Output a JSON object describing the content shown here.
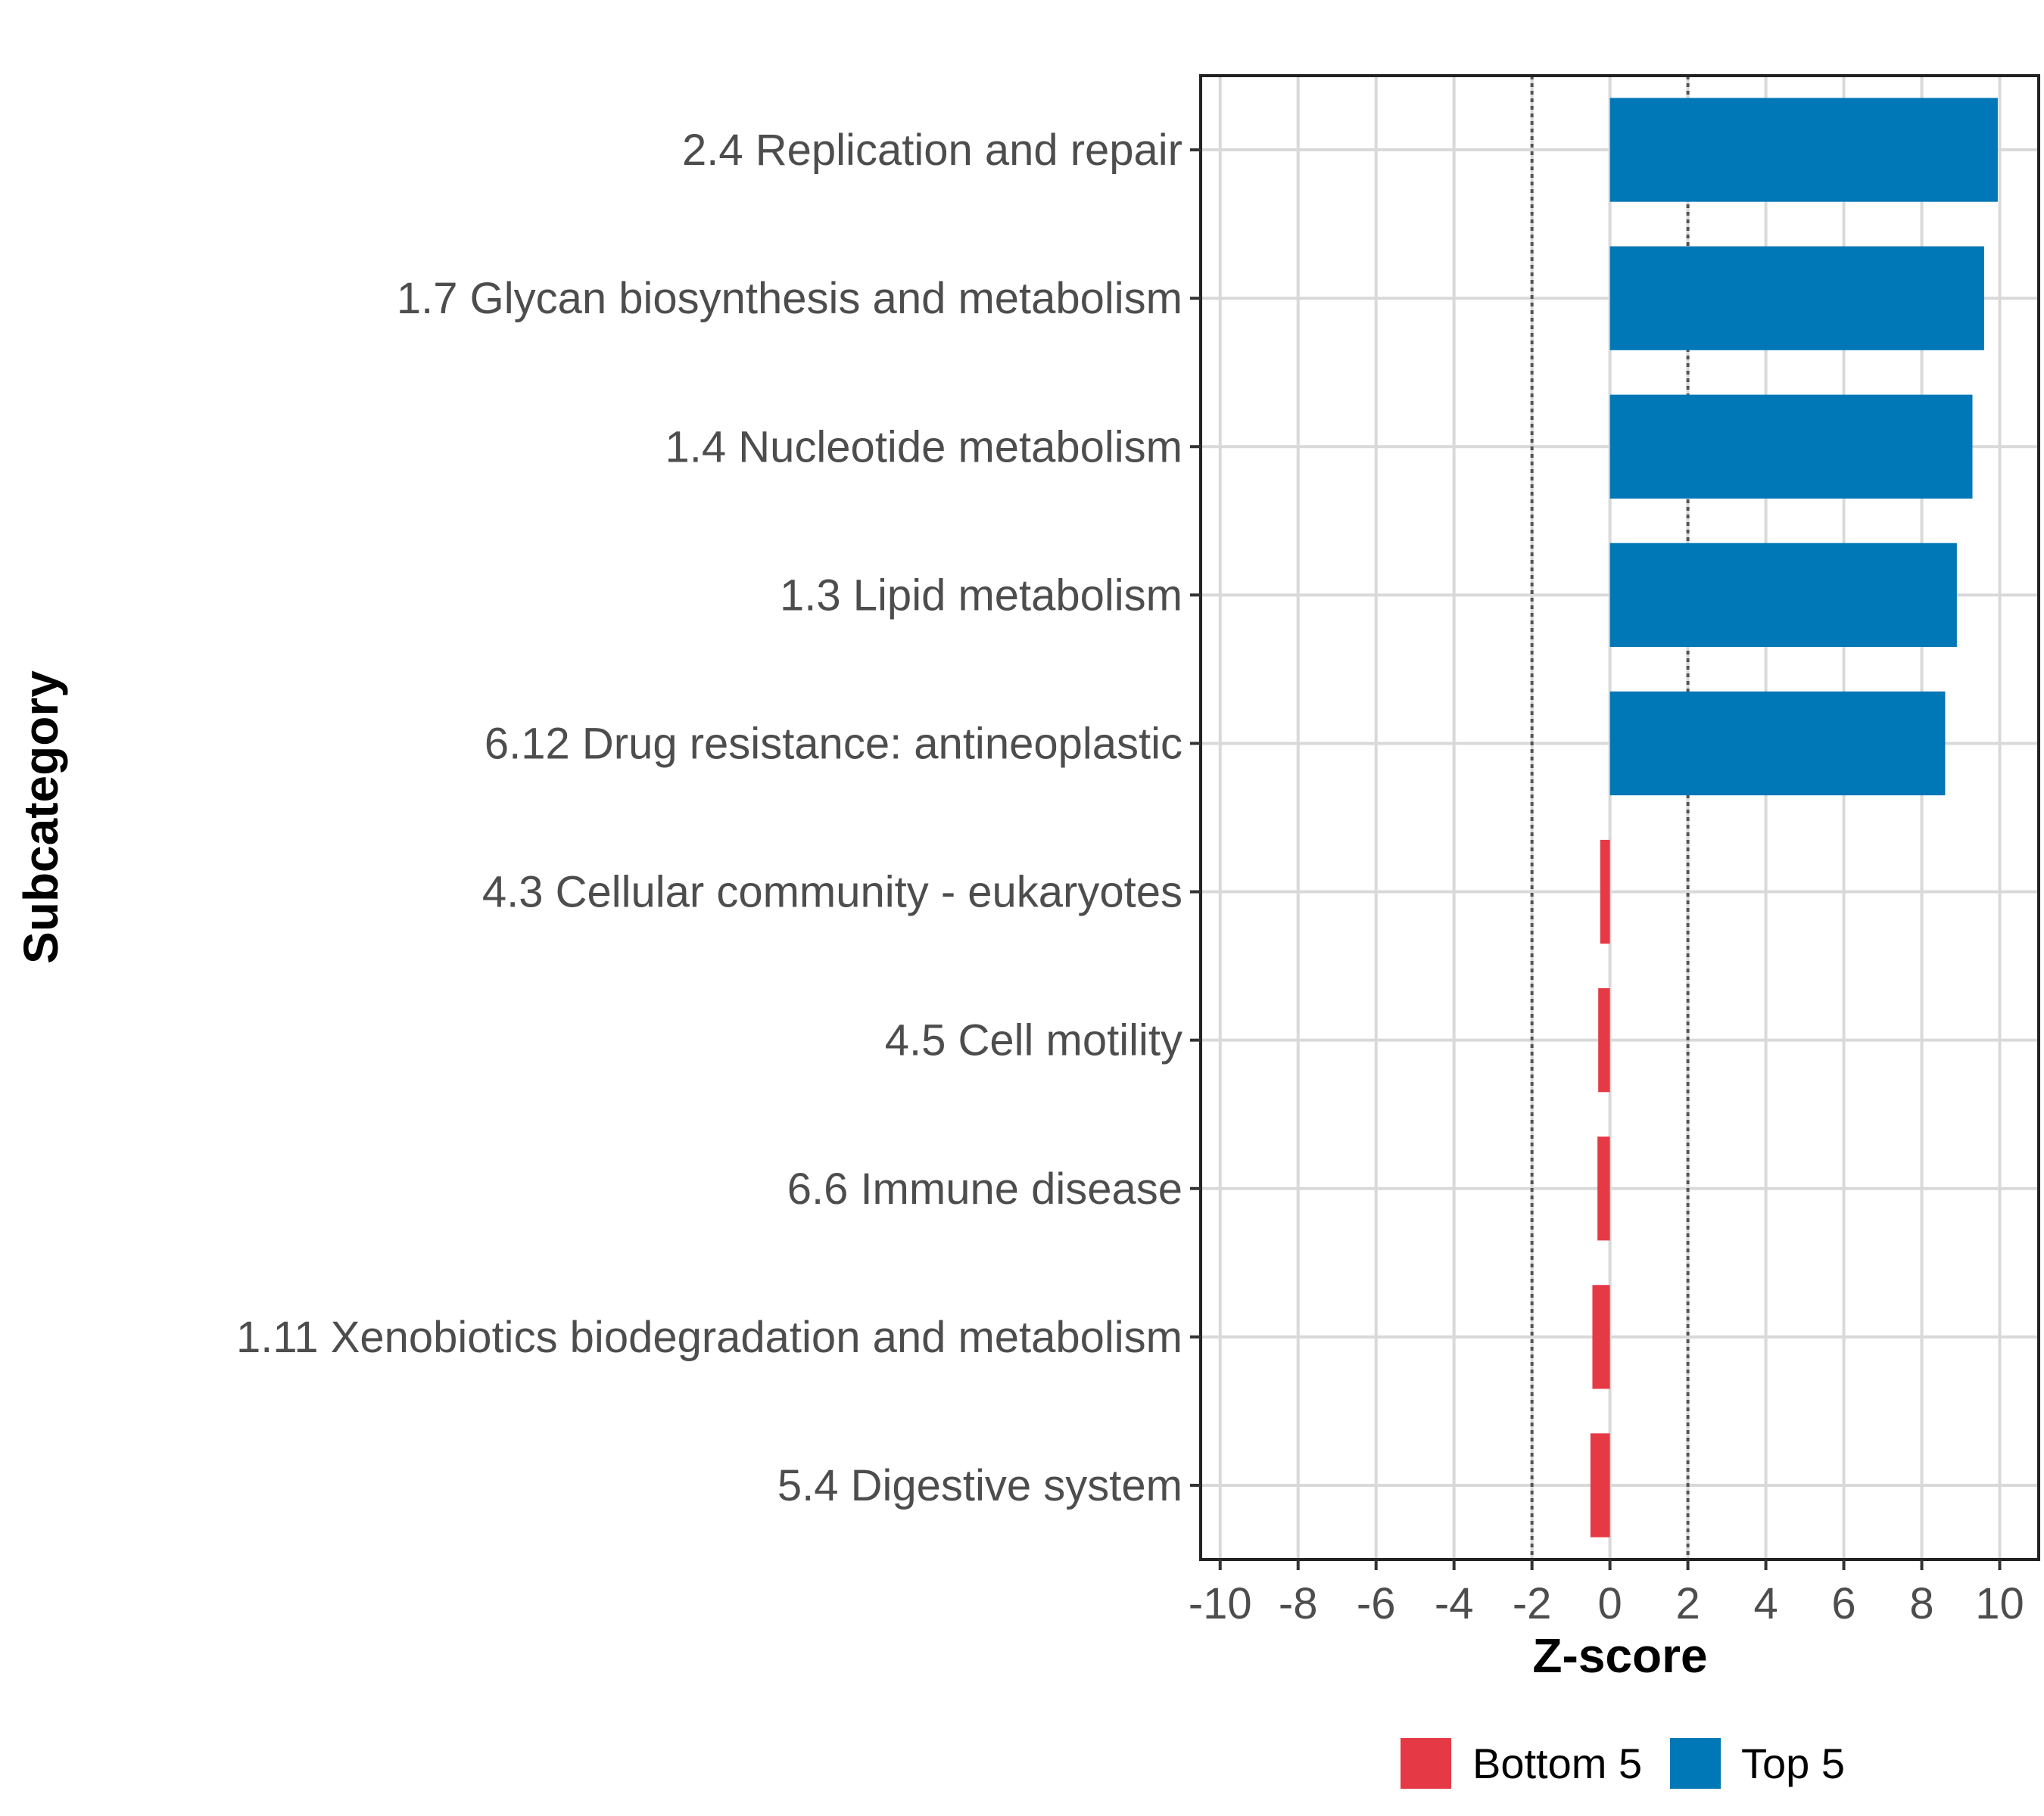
{
  "chart_data": {
    "type": "bar",
    "orientation": "horizontal",
    "xlabel": "Z-score",
    "ylabel": "Subcategory",
    "xlim": [
      -10.5,
      11
    ],
    "xticks": [
      -10,
      -8,
      -6,
      -4,
      -2,
      0,
      2,
      4,
      6,
      8,
      10
    ],
    "xtick_labels": [
      "-10",
      "-8",
      "-6",
      "-4",
      "-2",
      "0",
      "2",
      "4",
      "6",
      "8",
      "10"
    ],
    "reference_lines": [
      -2,
      2
    ],
    "categories": [
      "2.4 Replication and repair",
      "1.7 Glycan biosynthesis and metabolism",
      "1.4 Nucleotide metabolism",
      "1.3 Lipid metabolism",
      "6.12 Drug resistance: antineoplastic",
      "4.3 Cellular community - eukaryotes",
      "4.5 Cell motility",
      "6.6 Immune disease",
      "1.11 Xenobiotics biodegradation and metabolism",
      "5.4 Digestive system"
    ],
    "values": [
      9.95,
      9.6,
      9.3,
      8.9,
      8.6,
      -0.25,
      -0.3,
      -0.32,
      -0.45,
      -0.5
    ],
    "groups": [
      "Top 5",
      "Top 5",
      "Top 5",
      "Top 5",
      "Top 5",
      "Bottom 5",
      "Bottom 5",
      "Bottom 5",
      "Bottom 5",
      "Bottom 5"
    ],
    "legend": [
      {
        "name": "Bottom 5",
        "color": "#e63946"
      },
      {
        "name": "Top 5",
        "color": "#0077b6"
      }
    ],
    "legend_position": "bottom",
    "grid": true
  }
}
